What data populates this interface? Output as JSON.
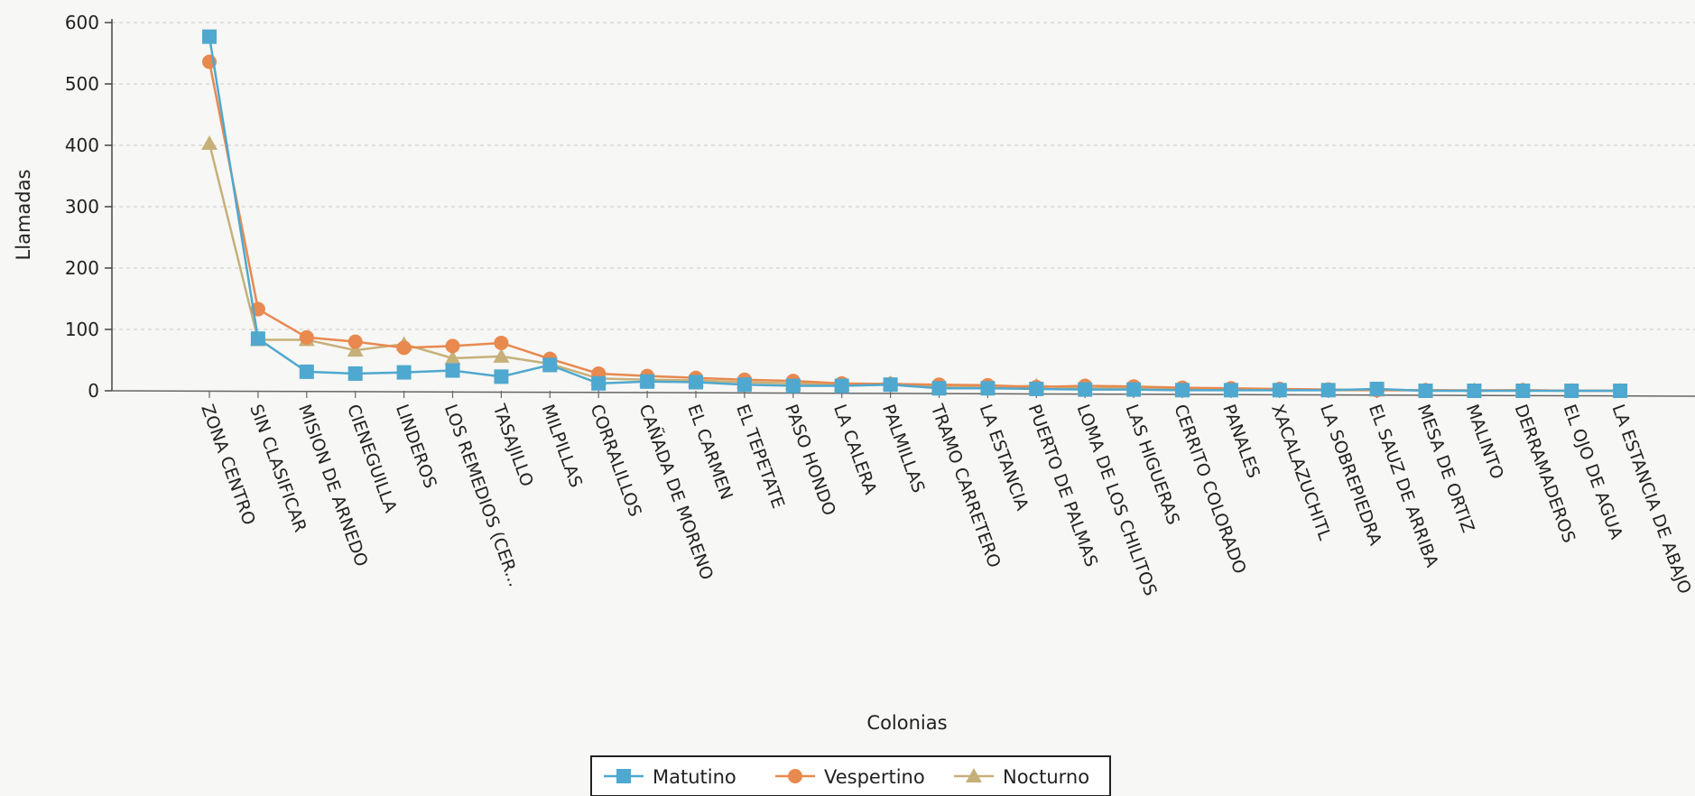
{
  "chart_data": {
    "type": "line",
    "xlabel": "Colonias",
    "ylabel": "Llamadas",
    "ylim": [
      0,
      600
    ],
    "yticks": [
      0,
      100,
      200,
      300,
      400,
      500,
      600
    ],
    "grid": "horizontal dashed",
    "legend_position": "bottom-center",
    "categories": [
      "ZONA CENTRO",
      "SIN CLASIFICAR",
      "MISION DE ARNEDO",
      "CIENEGUILLA",
      "LINDEROS",
      "LOS REMEDIOS (CER...",
      "TASAJILLO",
      "MILPILLAS",
      "CORRALILLOS",
      "CAÑADA DE MORENO",
      "EL CARMEN",
      "EL TEPETATE",
      "PASO HONDO",
      "LA CALERA",
      "PALMILLAS",
      "TRAMO CARRETERO",
      "LA ESTANCIA",
      "PUERTO DE PALMAS",
      "LOMA DE LOS CHILITOS",
      "LAS HIGUERAS",
      "CERRITO COLORADO",
      "PANALES",
      "XACALAZUCHITL",
      "LA SOBREPIEDRA",
      "EL SAUZ DE ARRIBA",
      "MESA DE ORTIZ",
      "MALINTO",
      "DERRAMADEROS",
      "EL OJO DE AGUA",
      "LA ESTANCIA DE ABAJO"
    ],
    "series": [
      {
        "name": "Matutino",
        "color": "#4fa8cf",
        "marker": "square",
        "values": [
          577,
          85,
          31,
          28,
          30,
          33,
          23,
          42,
          12,
          15,
          14,
          10,
          8,
          8,
          10,
          4,
          4,
          3,
          2,
          2,
          1,
          1,
          1,
          1,
          3,
          0,
          0,
          0,
          0,
          0
        ]
      },
      {
        "name": "Vespertino",
        "color": "#e8894f",
        "marker": "circle",
        "values": [
          536,
          133,
          87,
          80,
          70,
          73,
          78,
          52,
          28,
          24,
          21,
          18,
          16,
          12,
          11,
          10,
          9,
          6,
          8,
          7,
          5,
          4,
          3,
          2,
          1,
          1,
          0,
          1,
          0,
          0
        ]
      },
      {
        "name": "Nocturno",
        "color": "#c6b07a",
        "marker": "triangle",
        "values": [
          403,
          83,
          83,
          66,
          76,
          53,
          56,
          44,
          20,
          18,
          17,
          14,
          12,
          10,
          12,
          7,
          6,
          8,
          4,
          4,
          2,
          3,
          2,
          1,
          1,
          1,
          1,
          1,
          0,
          0
        ]
      }
    ]
  }
}
